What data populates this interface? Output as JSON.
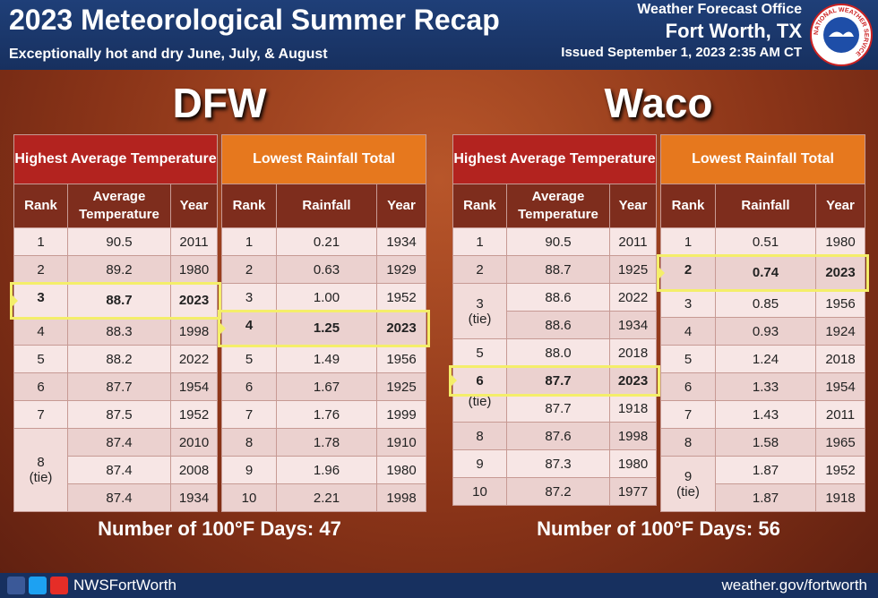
{
  "header": {
    "title": "2023 Meteorological Summer Recap",
    "subtitle": "Exceptionally hot and dry June, July, & August",
    "office": "Weather Forecast Office",
    "location": "Fort Worth, TX",
    "issued": "Issued September 1, 2023 2:35 AM CT",
    "logo": "NATIONAL WEATHER SERVICE"
  },
  "panels": [
    {
      "city": "DFW",
      "summary": "Number of 100°F Days: 47",
      "tables": [
        {
          "title": "Highest Average Temperature",
          "columns": [
            "Rank",
            "Average Temperature",
            "Year"
          ],
          "groups": [
            {
              "rank": "1",
              "rows": [
                {
                  "value": "90.5",
                  "year": "2011"
                }
              ]
            },
            {
              "rank": "2",
              "rows": [
                {
                  "value": "89.2",
                  "year": "1980"
                }
              ]
            },
            {
              "rank": "3",
              "rows": [
                {
                  "value": "88.7",
                  "year": "2023",
                  "highlight": true
                }
              ]
            },
            {
              "rank": "4",
              "rows": [
                {
                  "value": "88.3",
                  "year": "1998"
                }
              ]
            },
            {
              "rank": "5",
              "rows": [
                {
                  "value": "88.2",
                  "year": "2022"
                }
              ]
            },
            {
              "rank": "6",
              "rows": [
                {
                  "value": "87.7",
                  "year": "1954"
                }
              ]
            },
            {
              "rank": "7",
              "rows": [
                {
                  "value": "87.5",
                  "year": "1952"
                }
              ]
            },
            {
              "rank": "8",
              "note": "(tie)",
              "rows": [
                {
                  "value": "87.4",
                  "year": "2010"
                },
                {
                  "value": "87.4",
                  "year": "2008"
                },
                {
                  "value": "87.4",
                  "year": "1934"
                }
              ]
            }
          ]
        },
        {
          "title": "Lowest Rainfall Total",
          "columns": [
            "Rank",
            "Rainfall",
            "Year"
          ],
          "groups": [
            {
              "rank": "1",
              "rows": [
                {
                  "value": "0.21",
                  "year": "1934"
                }
              ]
            },
            {
              "rank": "2",
              "rows": [
                {
                  "value": "0.63",
                  "year": "1929"
                }
              ]
            },
            {
              "rank": "3",
              "rows": [
                {
                  "value": "1.00",
                  "year": "1952"
                }
              ]
            },
            {
              "rank": "4",
              "rows": [
                {
                  "value": "1.25",
                  "year": "2023",
                  "highlight": true
                }
              ]
            },
            {
              "rank": "5",
              "rows": [
                {
                  "value": "1.49",
                  "year": "1956"
                }
              ]
            },
            {
              "rank": "6",
              "rows": [
                {
                  "value": "1.67",
                  "year": "1925"
                }
              ]
            },
            {
              "rank": "7",
              "rows": [
                {
                  "value": "1.76",
                  "year": "1999"
                }
              ]
            },
            {
              "rank": "8",
              "rows": [
                {
                  "value": "1.78",
                  "year": "1910"
                }
              ]
            },
            {
              "rank": "9",
              "rows": [
                {
                  "value": "1.96",
                  "year": "1980"
                }
              ]
            },
            {
              "rank": "10",
              "rows": [
                {
                  "value": "2.21",
                  "year": "1998"
                }
              ]
            }
          ]
        }
      ]
    },
    {
      "city": "Waco",
      "summary": "Number of 100°F Days: 56",
      "tables": [
        {
          "title": "Highest Average Temperature",
          "columns": [
            "Rank",
            "Average Temperature",
            "Year"
          ],
          "groups": [
            {
              "rank": "1",
              "rows": [
                {
                  "value": "90.5",
                  "year": "2011"
                }
              ]
            },
            {
              "rank": "2",
              "rows": [
                {
                  "value": "88.7",
                  "year": "1925"
                }
              ]
            },
            {
              "rank": "3",
              "note": "(tie)",
              "rows": [
                {
                  "value": "88.6",
                  "year": "2022"
                },
                {
                  "value": "88.6",
                  "year": "1934"
                }
              ]
            },
            {
              "rank": "5",
              "rows": [
                {
                  "value": "88.0",
                  "year": "2018"
                }
              ]
            },
            {
              "rank": "6",
              "note": "(tie)",
              "rows": [
                {
                  "value": "87.7",
                  "year": "2023",
                  "highlight": true
                },
                {
                  "value": "87.7",
                  "year": "1918"
                }
              ]
            },
            {
              "rank": "8",
              "rows": [
                {
                  "value": "87.6",
                  "year": "1998"
                }
              ]
            },
            {
              "rank": "9",
              "rows": [
                {
                  "value": "87.3",
                  "year": "1980"
                }
              ]
            },
            {
              "rank": "10",
              "rows": [
                {
                  "value": "87.2",
                  "year": "1977"
                }
              ]
            }
          ]
        },
        {
          "title": "Lowest Rainfall Total",
          "columns": [
            "Rank",
            "Rainfall",
            "Year"
          ],
          "groups": [
            {
              "rank": "1",
              "rows": [
                {
                  "value": "0.51",
                  "year": "1980"
                }
              ]
            },
            {
              "rank": "2",
              "rows": [
                {
                  "value": "0.74",
                  "year": "2023",
                  "highlight": true
                }
              ]
            },
            {
              "rank": "3",
              "rows": [
                {
                  "value": "0.85",
                  "year": "1956"
                }
              ]
            },
            {
              "rank": "4",
              "rows": [
                {
                  "value": "0.93",
                  "year": "1924"
                }
              ]
            },
            {
              "rank": "5",
              "rows": [
                {
                  "value": "1.24",
                  "year": "2018"
                }
              ]
            },
            {
              "rank": "6",
              "rows": [
                {
                  "value": "1.33",
                  "year": "1954"
                }
              ]
            },
            {
              "rank": "7",
              "rows": [
                {
                  "value": "1.43",
                  "year": "2011"
                }
              ]
            },
            {
              "rank": "8",
              "rows": [
                {
                  "value": "1.58",
                  "year": "1965"
                }
              ]
            },
            {
              "rank": "9",
              "note": "(tie)",
              "rows": [
                {
                  "value": "1.87",
                  "year": "1952"
                },
                {
                  "value": "1.87",
                  "year": "1918"
                }
              ]
            }
          ]
        }
      ]
    }
  ],
  "footer": {
    "social": "NWSFortWorth",
    "url": "weather.gov/fortworth"
  }
}
